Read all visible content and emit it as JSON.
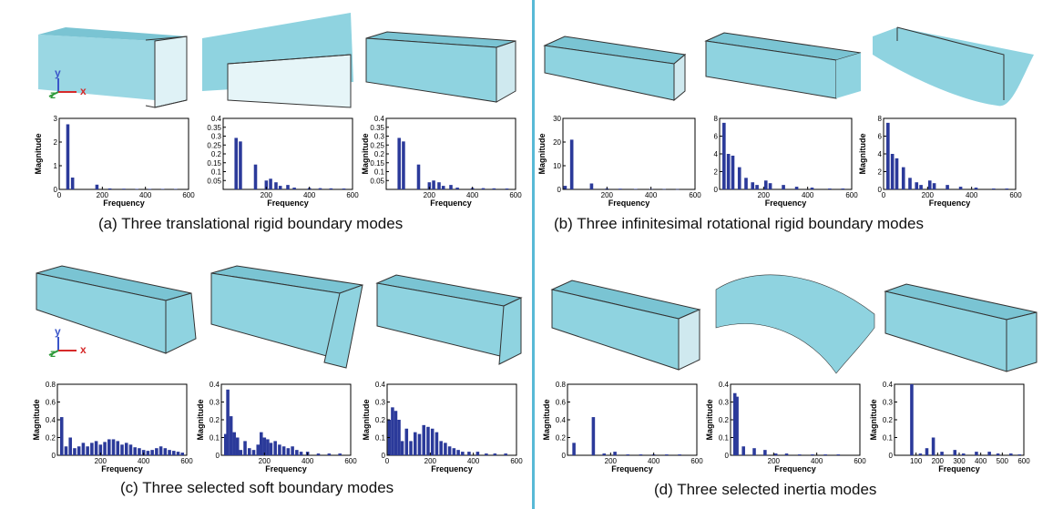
{
  "captions": {
    "a": "(a) Three translational rigid boundary modes",
    "b": "(b) Three infinitesimal rotational rigid boundary modes",
    "c": "(c) Three selected soft boundary modes",
    "d": "(d) Three selected inertia modes"
  },
  "axes_icon": {
    "y": "y",
    "z": "z",
    "x": "x"
  },
  "colors": {
    "bar": "#2b3a9a",
    "beam": "#8fd3e0",
    "divider": "#58b9d6",
    "axis_y": "#3a55c9",
    "axis_z": "#2f9a3a",
    "axis_x": "#d62a2a"
  },
  "chart_data": [
    {
      "panel": "a",
      "type": "bar",
      "xlabel": "Frequency",
      "ylabel": "Magnitude",
      "xlim": [
        0,
        600
      ],
      "ylim": [
        0,
        3
      ],
      "xticks": [
        "0",
        "200",
        "400",
        "600"
      ],
      "yticks": [
        "0",
        "1",
        "2",
        "3"
      ],
      "bars": [
        [
          40,
          2.75
        ],
        [
          62,
          0.5
        ],
        [
          175,
          0.2
        ],
        [
          235,
          0.04
        ],
        [
          300,
          0.03
        ],
        [
          360,
          0.02
        ],
        [
          420,
          0.02
        ],
        [
          480,
          0.02
        ],
        [
          540,
          0.02
        ]
      ]
    },
    {
      "panel": "a",
      "type": "bar",
      "xlabel": "Frequency",
      "ylabel": "",
      "xlim": [
        0,
        600
      ],
      "ylim": [
        0,
        0.4
      ],
      "xticks": [
        "200",
        "400",
        "600"
      ],
      "yticks": [
        "0.05",
        "0.1",
        "0.15",
        "0.2",
        "0.25",
        "0.3",
        "0.35",
        "0.4"
      ],
      "bars": [
        [
          60,
          0.29
        ],
        [
          80,
          0.27
        ],
        [
          150,
          0.14
        ],
        [
          200,
          0.05
        ],
        [
          220,
          0.06
        ],
        [
          245,
          0.04
        ],
        [
          265,
          0.02
        ],
        [
          300,
          0.025
        ],
        [
          330,
          0.01
        ],
        [
          400,
          0.008
        ],
        [
          450,
          0.007
        ],
        [
          500,
          0.006
        ],
        [
          560,
          0.005
        ]
      ]
    },
    {
      "panel": "a",
      "type": "bar",
      "xlabel": "Frequency",
      "ylabel": "Magnitude",
      "xlim": [
        0,
        600
      ],
      "ylim": [
        0,
        0.4
      ],
      "xticks": [
        "200",
        "400",
        "600"
      ],
      "yticks": [
        "0.05",
        "0.1",
        "0.15",
        "0.2",
        "0.25",
        "0.3",
        "0.35",
        "0.4"
      ],
      "bars": [
        [
          60,
          0.29
        ],
        [
          80,
          0.27
        ],
        [
          150,
          0.14
        ],
        [
          200,
          0.04
        ],
        [
          220,
          0.05
        ],
        [
          245,
          0.04
        ],
        [
          265,
          0.02
        ],
        [
          300,
          0.025
        ],
        [
          330,
          0.01
        ],
        [
          400,
          0.008
        ],
        [
          450,
          0.007
        ],
        [
          500,
          0.006
        ],
        [
          560,
          0.005
        ]
      ]
    },
    {
      "panel": "b",
      "type": "bar",
      "xlabel": "Frequency",
      "ylabel": "Magnitude",
      "xlim": [
        0,
        600
      ],
      "ylim": [
        0,
        30
      ],
      "xticks": [
        "200",
        "400",
        "600"
      ],
      "yticks": [
        "0",
        "10",
        "20",
        "30"
      ],
      "bars": [
        [
          10,
          1.5
        ],
        [
          40,
          21
        ],
        [
          130,
          2.5
        ],
        [
          200,
          0.4
        ],
        [
          260,
          0.3
        ],
        [
          330,
          0.2
        ],
        [
          400,
          0.2
        ],
        [
          460,
          0.15
        ],
        [
          520,
          0.1
        ]
      ]
    },
    {
      "panel": "b",
      "type": "bar",
      "xlabel": "Frequency",
      "ylabel": "",
      "xlim": [
        0,
        600
      ],
      "ylim": [
        0,
        8
      ],
      "xticks": [
        "200",
        "400",
        "600"
      ],
      "yticks": [
        "0",
        "2",
        "4",
        "6",
        "8"
      ],
      "bars": [
        [
          20,
          7.5
        ],
        [
          40,
          4
        ],
        [
          60,
          3.8
        ],
        [
          90,
          2.5
        ],
        [
          120,
          1.3
        ],
        [
          150,
          0.8
        ],
        [
          170,
          0.5
        ],
        [
          210,
          1
        ],
        [
          230,
          0.7
        ],
        [
          290,
          0.5
        ],
        [
          350,
          0.3
        ],
        [
          420,
          0.2
        ],
        [
          500,
          0.1
        ],
        [
          560,
          0.1
        ]
      ]
    },
    {
      "panel": "b",
      "type": "bar",
      "xlabel": "Frequency",
      "ylabel": "Magnitude",
      "xlim": [
        0,
        600
      ],
      "ylim": [
        0,
        8
      ],
      "xticks": [
        "0",
        "200",
        "400",
        "600"
      ],
      "yticks": [
        "0",
        "2",
        "4",
        "6",
        "8"
      ],
      "bars": [
        [
          20,
          7.5
        ],
        [
          40,
          4
        ],
        [
          60,
          3.5
        ],
        [
          90,
          2.5
        ],
        [
          120,
          1.3
        ],
        [
          150,
          0.8
        ],
        [
          170,
          0.5
        ],
        [
          210,
          1
        ],
        [
          230,
          0.7
        ],
        [
          290,
          0.5
        ],
        [
          350,
          0.3
        ],
        [
          420,
          0.2
        ],
        [
          500,
          0.1
        ],
        [
          560,
          0.1
        ]
      ]
    },
    {
      "panel": "c",
      "type": "bar",
      "xlabel": "Frequency",
      "ylabel": "Magnitude",
      "xlim": [
        0,
        600
      ],
      "ylim": [
        0,
        0.8
      ],
      "xticks": [
        "200",
        "400",
        "600"
      ],
      "yticks": [
        "0",
        "0.2",
        "0.4",
        "0.6",
        "0.8"
      ],
      "bars": [
        [
          20,
          0.43
        ],
        [
          40,
          0.1
        ],
        [
          60,
          0.2
        ],
        [
          80,
          0.08
        ],
        [
          100,
          0.1
        ],
        [
          120,
          0.14
        ],
        [
          140,
          0.1
        ],
        [
          160,
          0.14
        ],
        [
          180,
          0.16
        ],
        [
          200,
          0.12
        ],
        [
          220,
          0.15
        ],
        [
          240,
          0.18
        ],
        [
          260,
          0.18
        ],
        [
          280,
          0.16
        ],
        [
          300,
          0.12
        ],
        [
          320,
          0.14
        ],
        [
          340,
          0.12
        ],
        [
          360,
          0.09
        ],
        [
          380,
          0.08
        ],
        [
          400,
          0.06
        ],
        [
          420,
          0.05
        ],
        [
          440,
          0.06
        ],
        [
          460,
          0.08
        ],
        [
          480,
          0.1
        ],
        [
          500,
          0.08
        ],
        [
          520,
          0.06
        ],
        [
          540,
          0.05
        ],
        [
          560,
          0.04
        ],
        [
          580,
          0.03
        ]
      ]
    },
    {
      "panel": "c",
      "type": "bar",
      "xlabel": "Frequency",
      "ylabel": "Magnitude",
      "xlim": [
        0,
        600
      ],
      "ylim": [
        0,
        0.4
      ],
      "xticks": [
        "200",
        "400",
        "600"
      ],
      "yticks": [
        "0",
        "0.1",
        "0.2",
        "0.3",
        "0.4"
      ],
      "bars": [
        [
          20,
          0.12
        ],
        [
          30,
          0.37
        ],
        [
          45,
          0.22
        ],
        [
          60,
          0.13
        ],
        [
          75,
          0.1
        ],
        [
          90,
          0.03
        ],
        [
          110,
          0.08
        ],
        [
          130,
          0.04
        ],
        [
          150,
          0.03
        ],
        [
          170,
          0.06
        ],
        [
          185,
          0.13
        ],
        [
          200,
          0.1
        ],
        [
          215,
          0.09
        ],
        [
          230,
          0.07
        ],
        [
          250,
          0.08
        ],
        [
          270,
          0.06
        ],
        [
          290,
          0.05
        ],
        [
          310,
          0.04
        ],
        [
          330,
          0.05
        ],
        [
          350,
          0.03
        ],
        [
          370,
          0.02
        ],
        [
          400,
          0.02
        ],
        [
          450,
          0.01
        ],
        [
          500,
          0.01
        ],
        [
          550,
          0.01
        ]
      ]
    },
    {
      "panel": "c",
      "type": "bar",
      "xlabel": "Frequency",
      "ylabel": "Magnitude",
      "xlim": [
        0,
        600
      ],
      "ylim": [
        0,
        0.4
      ],
      "xticks": [
        "0",
        "200",
        "400",
        "600"
      ],
      "yticks": [
        "0",
        "0.1",
        "0.2",
        "0.3",
        "0.4"
      ],
      "bars": [
        [
          10,
          0.2
        ],
        [
          25,
          0.27
        ],
        [
          40,
          0.25
        ],
        [
          55,
          0.2
        ],
        [
          70,
          0.08
        ],
        [
          90,
          0.15
        ],
        [
          110,
          0.08
        ],
        [
          130,
          0.13
        ],
        [
          150,
          0.12
        ],
        [
          170,
          0.17
        ],
        [
          190,
          0.16
        ],
        [
          210,
          0.15
        ],
        [
          230,
          0.13
        ],
        [
          250,
          0.08
        ],
        [
          270,
          0.07
        ],
        [
          290,
          0.05
        ],
        [
          310,
          0.04
        ],
        [
          330,
          0.03
        ],
        [
          350,
          0.02
        ],
        [
          380,
          0.02
        ],
        [
          420,
          0.02
        ],
        [
          460,
          0.01
        ],
        [
          500,
          0.01
        ],
        [
          550,
          0.01
        ]
      ]
    },
    {
      "panel": "d",
      "type": "bar",
      "xlabel": "Frequency",
      "ylabel": "Magnitude",
      "xlim": [
        0,
        600
      ],
      "ylim": [
        0,
        0.8
      ],
      "xticks": [
        "200",
        "400",
        "600"
      ],
      "yticks": [
        "0",
        "0.2",
        "0.4",
        "0.6",
        "0.8"
      ],
      "bars": [
        [
          30,
          0.14
        ],
        [
          120,
          0.43
        ],
        [
          170,
          0.02
        ],
        [
          220,
          0.04
        ],
        [
          280,
          0.01
        ],
        [
          340,
          0.01
        ],
        [
          400,
          0.01
        ],
        [
          460,
          0.01
        ],
        [
          520,
          0.01
        ]
      ]
    },
    {
      "panel": "d",
      "type": "bar",
      "xlabel": "Frequency",
      "ylabel": "Magnitude",
      "xlim": [
        0,
        600
      ],
      "ylim": [
        0,
        0.4
      ],
      "xticks": [
        "200",
        "400",
        "600"
      ],
      "yticks": [
        "0",
        "0.1",
        "0.2",
        "0.3",
        "0.4"
      ],
      "bars": [
        [
          20,
          0.35
        ],
        [
          30,
          0.33
        ],
        [
          60,
          0.05
        ],
        [
          110,
          0.04
        ],
        [
          160,
          0.03
        ],
        [
          210,
          0.01
        ],
        [
          260,
          0.01
        ],
        [
          320,
          0.005
        ],
        [
          380,
          0.005
        ],
        [
          440,
          0.005
        ],
        [
          500,
          0.005
        ]
      ]
    },
    {
      "panel": "d",
      "type": "bar",
      "xlabel": "Frequency",
      "ylabel": "Magnitude",
      "xlim": [
        0,
        600
      ],
      "ylim": [
        0,
        0.4
      ],
      "xticks": [
        "100",
        "200",
        "300",
        "400",
        "500",
        "600"
      ],
      "yticks": [
        "0",
        "0.1",
        "0.2",
        "0.3",
        "0.4"
      ],
      "bars": [
        [
          80,
          0.4
        ],
        [
          120,
          0.01
        ],
        [
          150,
          0.04
        ],
        [
          180,
          0.1
        ],
        [
          220,
          0.02
        ],
        [
          280,
          0.03
        ],
        [
          320,
          0.01
        ],
        [
          380,
          0.02
        ],
        [
          440,
          0.02
        ],
        [
          480,
          0.01
        ],
        [
          540,
          0.01
        ],
        [
          580,
          0.005
        ]
      ]
    }
  ]
}
